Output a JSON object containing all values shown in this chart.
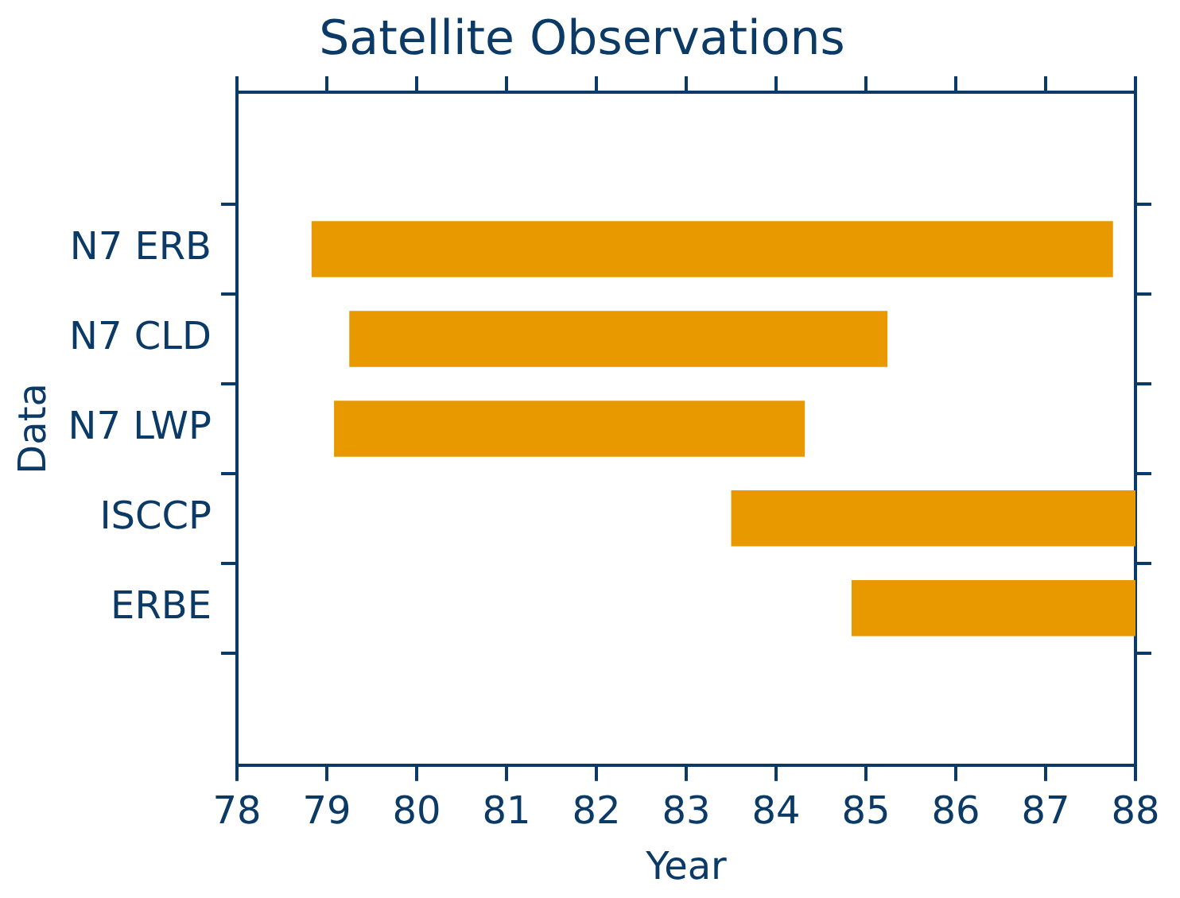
{
  "chart_data": {
    "type": "bar",
    "orientation": "horizontal",
    "title": "Satellite Observations",
    "xlabel": "Year",
    "ylabel": "Data",
    "categories": [
      "N7 ERB",
      "N7 CLD",
      "N7 LWP",
      "ISCCP",
      "ERBE"
    ],
    "base": [
      78.83,
      79.25,
      79.08,
      83.5,
      84.84
    ],
    "values": [
      8.92,
      5.99,
      5.24,
      4.5,
      3.16
    ],
    "color": "#e89900",
    "xlim": [
      78,
      88
    ],
    "xticks": [
      78,
      79,
      80,
      81,
      82,
      83,
      84,
      85,
      86,
      87,
      88
    ],
    "grid": false,
    "legend": false
  }
}
